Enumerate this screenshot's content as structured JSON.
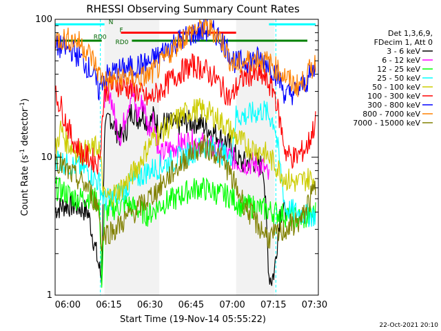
{
  "chart_data": {
    "type": "line",
    "title": "RHESSI Observing Summary Count Rates",
    "xlabel": "Start Time (19-Nov-14 05:55:22)",
    "ylabel_main": "Count Rate (s",
    "ylabel_sup1": "-1",
    "ylabel_mid": " detector",
    "ylabel_sup2": "-1",
    "ylabel_end": ")",
    "y_scale": "log",
    "ylim": [
      1,
      100
    ],
    "xlim_minutes": [
      0,
      96
    ],
    "y_ticks": [
      {
        "value": 1,
        "label": "1"
      },
      {
        "value": 10,
        "label": "10"
      },
      {
        "value": 100,
        "label": "100"
      }
    ],
    "x_ticks": [
      {
        "minute": 4.6,
        "label": "06:00"
      },
      {
        "minute": 19.6,
        "label": "06:15"
      },
      {
        "minute": 34.6,
        "label": "06:30"
      },
      {
        "minute": 49.6,
        "label": "06:45"
      },
      {
        "minute": 64.6,
        "label": "07:00"
      },
      {
        "minute": 79.6,
        "label": "07:15"
      },
      {
        "minute": 94.6,
        "label": "07:30"
      }
    ],
    "legend_header": [
      "Det 1,3,6,9,",
      "FDecim 1, Att 0"
    ],
    "timestamp": "22-Oct-2021 20:10",
    "night_intervals": [
      [
        18,
        38
      ],
      [
        66,
        80
      ]
    ],
    "saa_minutes": [
      16.5,
      80.5
    ],
    "flag_labels": [
      {
        "text": "N",
        "minute": 19.5,
        "y": 92
      },
      {
        "text": "F",
        "minute": 23.5,
        "y": 81
      },
      {
        "text": "RD0",
        "minute": 14,
        "y": 72
      },
      {
        "text": "RD0",
        "minute": 22,
        "y": 66
      }
    ],
    "flag_bars": [
      {
        "name": "night",
        "color": "#00ffff",
        "y": 92,
        "segments": [
          [
            0,
            18
          ],
          [
            78,
            95
          ]
        ]
      },
      {
        "name": "flare",
        "color": "#ff0000",
        "y": 80,
        "segments": [
          [
            24,
            66
          ]
        ]
      },
      {
        "name": "decimation",
        "color": "#008000",
        "y": 70,
        "segments": [
          [
            0,
            17
          ],
          [
            28,
            92
          ]
        ]
      }
    ],
    "series": [
      {
        "name": "3 - 6 keV",
        "color": "#000000",
        "x": [
          0,
          4,
          8,
          12,
          16,
          17,
          18,
          20,
          22,
          24,
          26,
          28,
          30,
          32,
          34,
          36,
          38,
          40,
          44,
          48,
          52,
          56,
          60,
          64,
          66,
          68,
          72,
          76,
          78,
          79,
          80,
          82,
          84
        ],
        "y": [
          4.2,
          4.5,
          4.4,
          4.0,
          1.6,
          1.3,
          15,
          20,
          16,
          14,
          16,
          22,
          19,
          21,
          17,
          20,
          16,
          18,
          17,
          18,
          18,
          16,
          14,
          12,
          10,
          9,
          9.5,
          8.5,
          1.4,
          1.3,
          1.5,
          4,
          4
        ]
      },
      {
        "name": "6 - 12 keV",
        "color": "#ff00ff",
        "x": [
          18,
          20,
          22,
          24,
          26,
          28,
          30,
          32,
          34,
          36,
          38,
          40,
          44,
          48,
          52,
          56,
          60,
          64,
          66,
          68,
          72,
          76,
          78
        ],
        "y": [
          28,
          30,
          18,
          14,
          22,
          30,
          20,
          26,
          16,
          20,
          10,
          11,
          12,
          13,
          13,
          12,
          11,
          10,
          9.5,
          9,
          9,
          8.5,
          7
        ]
      },
      {
        "name": "12 - 25 keV",
        "color": "#00ff00",
        "x": [
          0,
          4,
          8,
          12,
          16,
          17,
          18,
          22,
          26,
          30,
          34,
          38,
          40,
          44,
          48,
          52,
          56,
          60,
          64,
          68,
          72,
          76,
          80,
          84,
          88,
          92,
          95
        ],
        "y": [
          6,
          5.5,
          5,
          5.2,
          4.8,
          1.3,
          4,
          4.3,
          4.6,
          4.2,
          3.8,
          4.5,
          4.7,
          5,
          5.6,
          6,
          5.8,
          5.4,
          5.2,
          4.4,
          4.4,
          4.2,
          4,
          3.8,
          3.6,
          3.6,
          4
        ]
      },
      {
        "name": "25 - 50 keV",
        "color": "#00ffff",
        "x": [
          0,
          4,
          8,
          12,
          16,
          18,
          22,
          26,
          30,
          34,
          38,
          40,
          44,
          48,
          52,
          56,
          60,
          64,
          66,
          70,
          76,
          80,
          84,
          88,
          92,
          95
        ],
        "y": [
          10,
          9,
          8.5,
          8,
          6.5,
          4.8,
          5.2,
          6,
          7,
          8,
          8.5,
          9,
          9.5,
          10.5,
          11.5,
          12,
          11,
          9.5,
          20,
          20,
          22,
          18,
          4.2,
          4,
          3.8,
          3.8
        ]
      },
      {
        "name": "50 - 100 keV",
        "color": "#cccc00",
        "x": [
          0,
          2,
          4,
          6,
          8,
          10,
          12,
          16,
          18,
          22,
          26,
          30,
          34,
          36,
          38,
          42,
          46,
          50,
          54,
          58,
          62,
          66,
          70,
          76,
          80,
          84,
          88,
          92,
          95
        ],
        "y": [
          11,
          16,
          13,
          12,
          11,
          11,
          11,
          12,
          5,
          5.5,
          6.5,
          8.5,
          12,
          14,
          15,
          17,
          20,
          22,
          22,
          20,
          17,
          14,
          12,
          11,
          9,
          7,
          6.5,
          7,
          7
        ]
      },
      {
        "name": "100 - 300 keV",
        "color": "#ff0000",
        "x": [
          0,
          2,
          4,
          6,
          8,
          10,
          14,
          16,
          18,
          22,
          26,
          30,
          34,
          38,
          42,
          46,
          50,
          54,
          58,
          62,
          64,
          66,
          70,
          76,
          80,
          84,
          86,
          88,
          92,
          95
        ],
        "y": [
          28,
          24,
          18,
          14,
          12,
          10.5,
          9.5,
          9,
          30,
          34,
          32,
          30,
          26,
          30,
          36,
          42,
          46,
          44,
          38,
          30,
          26,
          32,
          40,
          38,
          30,
          11,
          10,
          10,
          12,
          18
        ]
      },
      {
        "name": "300 - 800 keV",
        "color": "#0000ff",
        "x": [
          0,
          2,
          4,
          6,
          8,
          10,
          12,
          14,
          16,
          17,
          18,
          22,
          26,
          30,
          34,
          38,
          42,
          46,
          50,
          54,
          56,
          58,
          60,
          62,
          64,
          66,
          70,
          74,
          78,
          82,
          84,
          88,
          92,
          95
        ],
        "y": [
          62,
          63,
          61,
          60,
          55,
          50,
          45,
          40,
          30,
          36,
          38,
          42,
          44,
          46,
          48,
          55,
          65,
          72,
          78,
          82,
          83,
          80,
          74,
          65,
          55,
          48,
          50,
          52,
          48,
          36,
          28,
          30,
          36,
          45
        ]
      },
      {
        "name": "800 - 7000 keV",
        "color": "#ff8000",
        "x": [
          0,
          4,
          8,
          10,
          12,
          14,
          16,
          18,
          22,
          26,
          30,
          34,
          38,
          42,
          46,
          50,
          52,
          54,
          56,
          58,
          60,
          62,
          64,
          66,
          70,
          74,
          78,
          82,
          86,
          88,
          90,
          92,
          95
        ],
        "y": [
          72,
          72,
          70,
          64,
          58,
          50,
          40,
          36,
          36,
          38,
          37,
          39,
          45,
          58,
          72,
          82,
          86,
          87,
          86,
          82,
          74,
          62,
          50,
          46,
          50,
          52,
          48,
          42,
          35,
          33,
          34,
          40,
          48
        ]
      },
      {
        "name": "7000 - 15000 keV",
        "color": "#808000",
        "x": [
          0,
          4,
          8,
          12,
          16,
          17,
          18,
          22,
          26,
          30,
          34,
          38,
          42,
          46,
          50,
          54,
          58,
          62,
          66,
          70,
          74,
          78,
          82,
          86,
          90,
          92,
          95
        ],
        "y": [
          10,
          8,
          7,
          6,
          4.2,
          2.3,
          2.8,
          3,
          3.6,
          4.2,
          5,
          6,
          7.5,
          9,
          11,
          12,
          11,
          9,
          6,
          4.2,
          3.2,
          2.6,
          2.8,
          3.2,
          3.5,
          4.5,
          6
        ]
      }
    ]
  }
}
